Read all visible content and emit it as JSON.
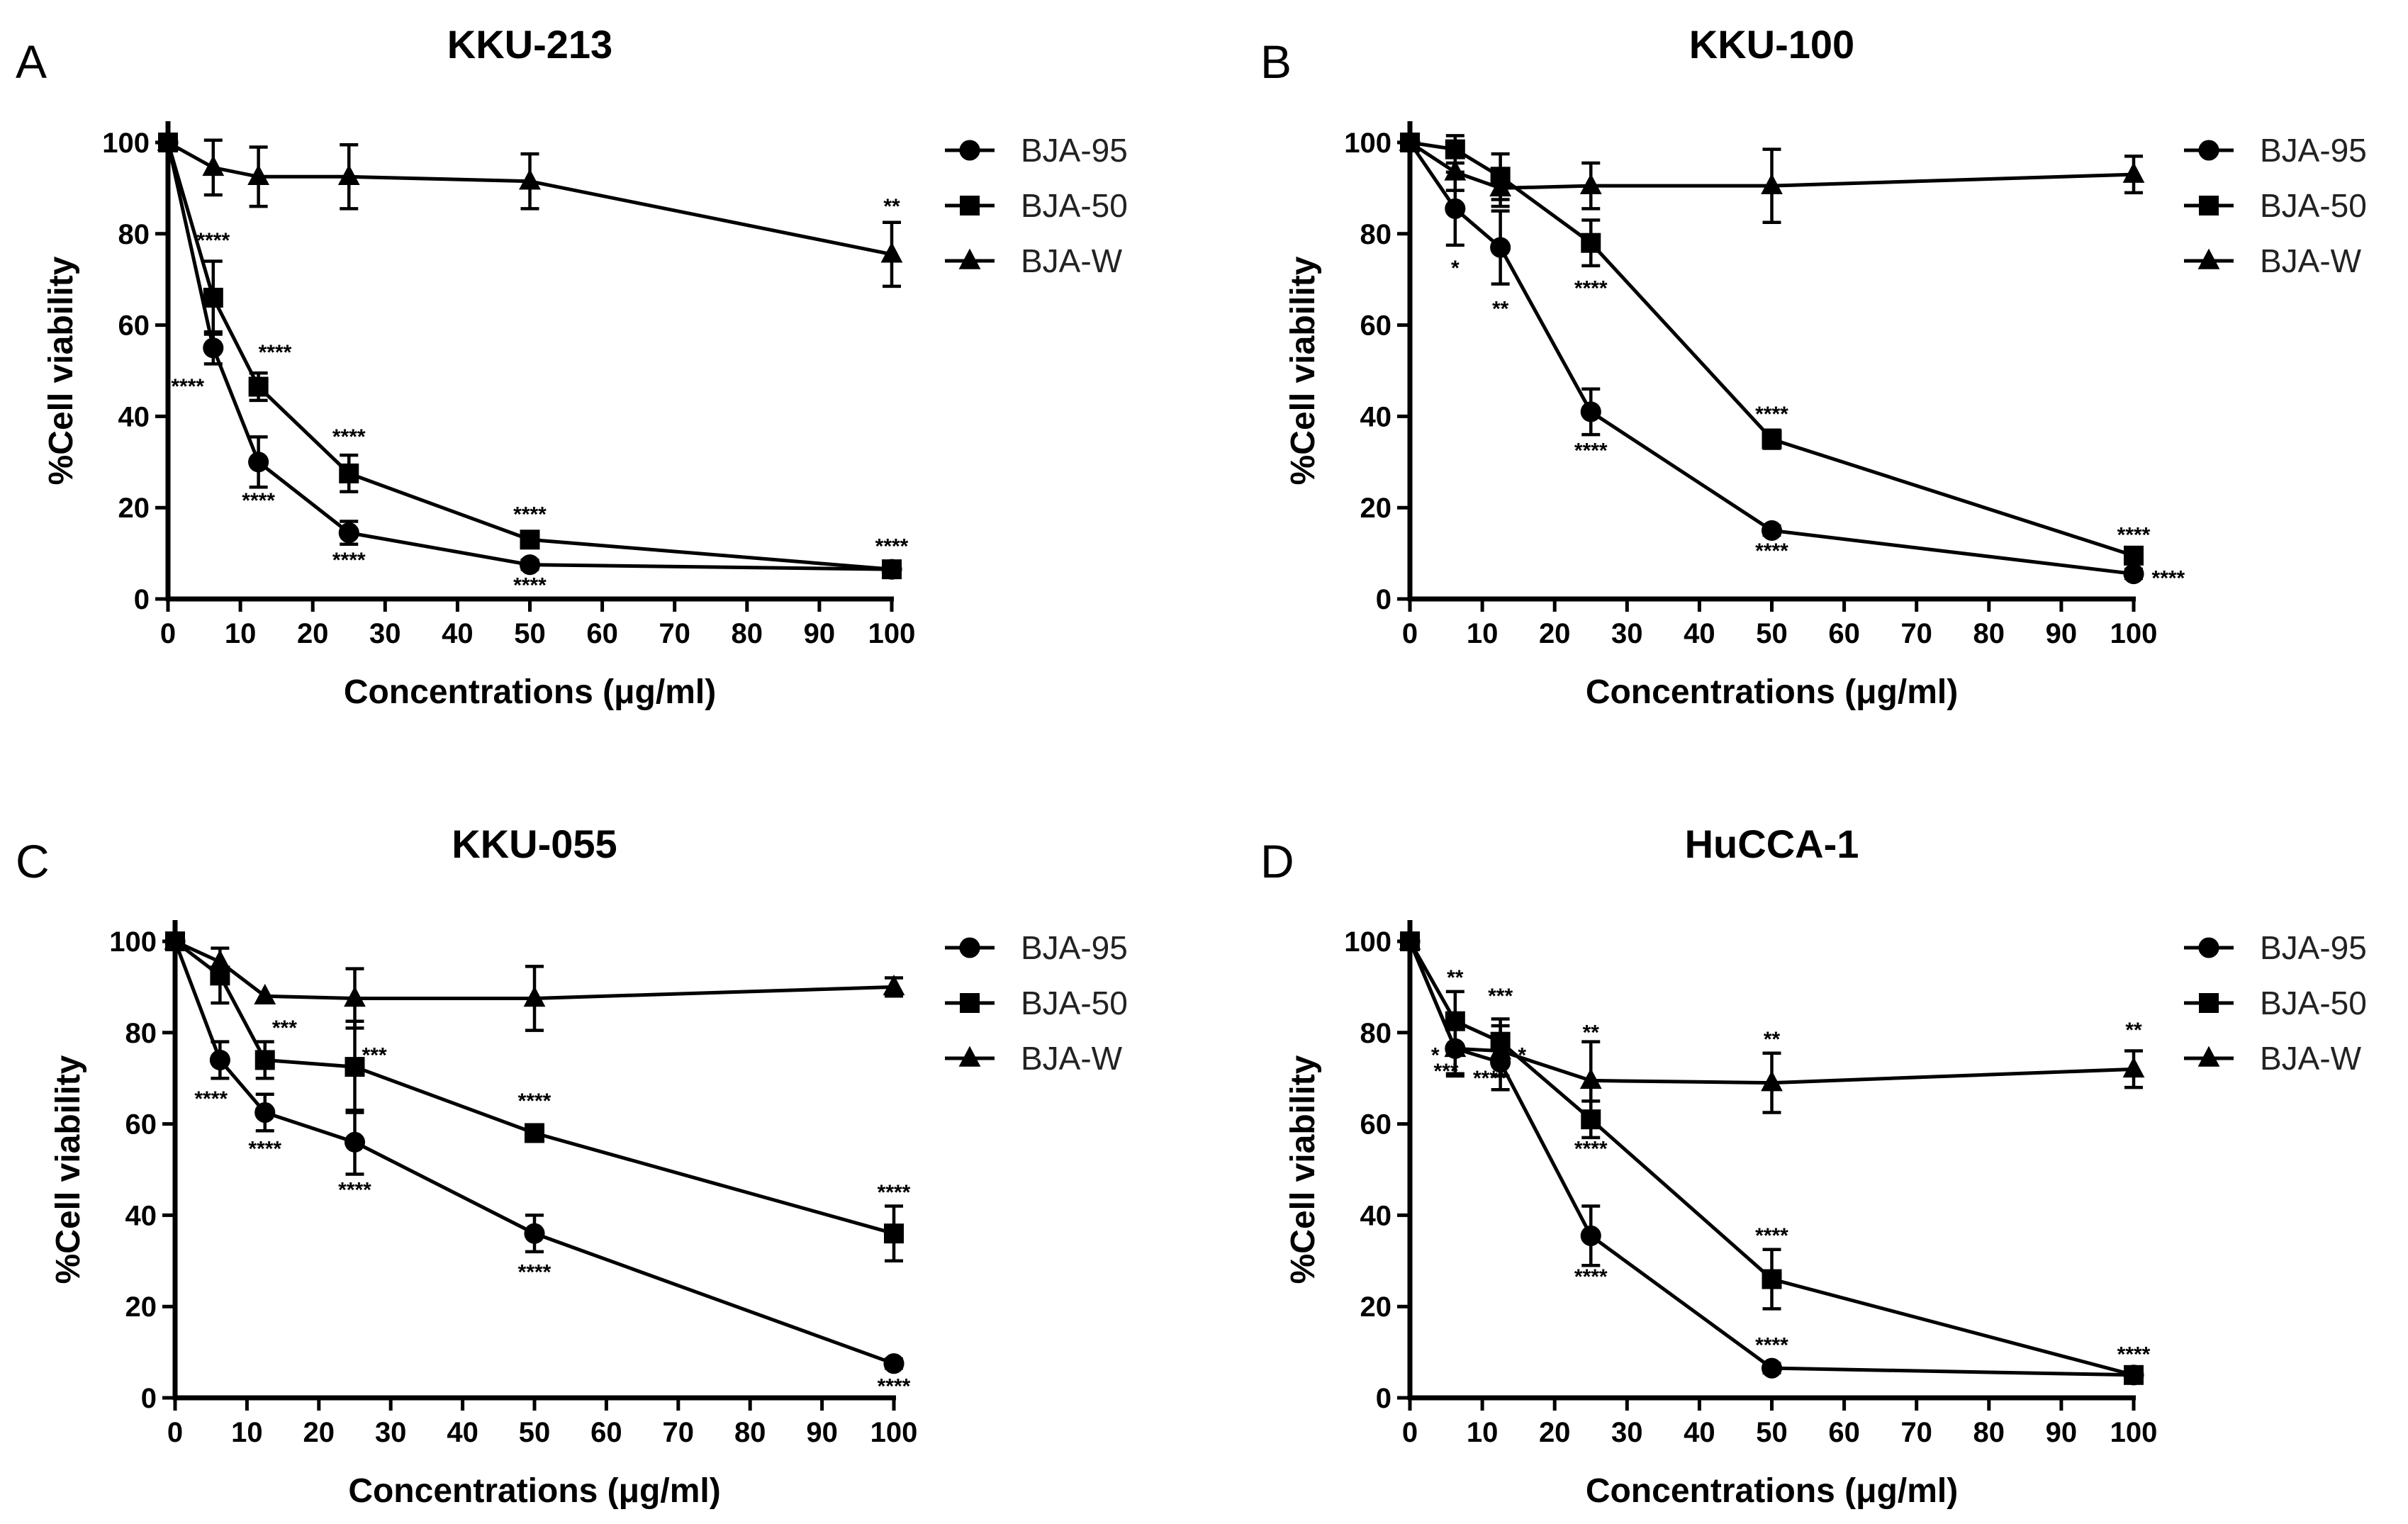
{
  "chart_data": [
    {
      "type": "line",
      "panel_label": "A",
      "title": "KKU-213",
      "xlabel": "Concentrations (μg/ml)",
      "ylabel": "%Cell viability",
      "xlim": [
        0,
        100
      ],
      "ylim": [
        0,
        100
      ],
      "xticks": [
        0,
        10,
        20,
        30,
        40,
        50,
        60,
        70,
        80,
        90,
        100
      ],
      "yticks": [
        0,
        20,
        40,
        60,
        80,
        100
      ],
      "x": [
        0,
        6.25,
        12.5,
        25,
        50,
        100
      ],
      "legend_position": "top-right",
      "series": [
        {
          "name": "BJA-95",
          "marker": "circle",
          "values": [
            100,
            55,
            30,
            14.5,
            7.5,
            6.5
          ],
          "errors": [
            0,
            3.5,
            5.5,
            2.5,
            1,
            1
          ]
        },
        {
          "name": "BJA-50",
          "marker": "square",
          "values": [
            100,
            66,
            46.5,
            27.5,
            13,
            6.5
          ],
          "errors": [
            0,
            8,
            3,
            4,
            1.5,
            1.5
          ]
        },
        {
          "name": "BJA-W",
          "marker": "triangle",
          "values": [
            100,
            94.5,
            92.5,
            92.5,
            91.5,
            75.5
          ],
          "errors": [
            0,
            6,
            6.5,
            7,
            6,
            7
          ]
        }
      ],
      "annotations": [
        {
          "text": "****",
          "x": 6.25,
          "y": 77,
          "anchor": "middle"
        },
        {
          "text": "****",
          "x": 5,
          "y": 45,
          "anchor": "end"
        },
        {
          "text": "****",
          "x": 12.5,
          "y": 52.5,
          "anchor": "start"
        },
        {
          "text": "****",
          "x": 12.5,
          "y": 20,
          "anchor": "middle"
        },
        {
          "text": "****",
          "x": 25,
          "y": 34,
          "anchor": "middle"
        },
        {
          "text": "****",
          "x": 25,
          "y": 7,
          "anchor": "middle"
        },
        {
          "text": "****",
          "x": 50,
          "y": 17,
          "anchor": "middle"
        },
        {
          "text": "****",
          "x": 50,
          "y": 1.5,
          "anchor": "middle"
        },
        {
          "text": "****",
          "x": 100,
          "y": 10,
          "anchor": "middle"
        },
        {
          "text": "**",
          "x": 100,
          "y": 84.5,
          "anchor": "middle"
        }
      ]
    },
    {
      "type": "line",
      "panel_label": "B",
      "title": "KKU-100",
      "xlabel": "Concentrations (μg/ml)",
      "ylabel": "%Cell viability",
      "xlim": [
        0,
        100
      ],
      "ylim": [
        0,
        100
      ],
      "xticks": [
        0,
        10,
        20,
        30,
        40,
        50,
        60,
        70,
        80,
        90,
        100
      ],
      "yticks": [
        0,
        20,
        40,
        60,
        80,
        100
      ],
      "x": [
        0,
        6.25,
        12.5,
        25,
        50,
        100
      ],
      "legend_position": "top-right",
      "series": [
        {
          "name": "BJA-95",
          "marker": "circle",
          "values": [
            100,
            85.5,
            77,
            41,
            15,
            5.5
          ],
          "errors": [
            0,
            8,
            8,
            5,
            1,
            1
          ]
        },
        {
          "name": "BJA-50",
          "marker": "square",
          "values": [
            100,
            98.5,
            92.5,
            78,
            35,
            9.5
          ],
          "errors": [
            0,
            3,
            5,
            5,
            2,
            1
          ]
        },
        {
          "name": "BJA-W",
          "marker": "triangle",
          "values": [
            100,
            93.5,
            90,
            90.5,
            90.5,
            93
          ],
          "errors": [
            0,
            4,
            4,
            5,
            8,
            4
          ]
        }
      ],
      "annotations": [
        {
          "text": "*",
          "x": 6.25,
          "y": 71,
          "anchor": "middle"
        },
        {
          "text": "**",
          "x": 12.5,
          "y": 62,
          "anchor": "middle"
        },
        {
          "text": "****",
          "x": 25,
          "y": 66.5,
          "anchor": "middle"
        },
        {
          "text": "****",
          "x": 25,
          "y": 31,
          "anchor": "middle"
        },
        {
          "text": "****",
          "x": 50,
          "y": 39,
          "anchor": "middle"
        },
        {
          "text": "****",
          "x": 50,
          "y": 9,
          "anchor": "middle"
        },
        {
          "text": "****",
          "x": 100,
          "y": 12.5,
          "anchor": "middle"
        },
        {
          "text": "****",
          "x": 102.5,
          "y": 3,
          "anchor": "start"
        }
      ]
    },
    {
      "type": "line",
      "panel_label": "C",
      "title": "KKU-055",
      "xlabel": "Concentrations (μg/ml)",
      "ylabel": "%Cell viability",
      "xlim": [
        0,
        100
      ],
      "ylim": [
        0,
        100
      ],
      "xticks": [
        0,
        10,
        20,
        30,
        40,
        50,
        60,
        70,
        80,
        90,
        100
      ],
      "yticks": [
        0,
        20,
        40,
        60,
        80,
        100
      ],
      "x": [
        0,
        6.25,
        12.5,
        25,
        50,
        100
      ],
      "legend_position": "top-right",
      "series": [
        {
          "name": "BJA-95",
          "marker": "circle",
          "values": [
            100,
            74,
            62.5,
            56,
            36,
            7.5
          ],
          "errors": [
            0,
            4,
            4,
            7,
            4,
            1
          ]
        },
        {
          "name": "BJA-50",
          "marker": "square",
          "values": [
            100,
            92.5,
            74,
            72.5,
            58,
            36
          ],
          "errors": [
            0,
            6,
            4,
            10,
            1.5,
            6
          ]
        },
        {
          "name": "BJA-W",
          "marker": "triangle",
          "values": [
            100,
            95.5,
            88,
            87.5,
            87.5,
            90
          ],
          "errors": [
            0,
            0,
            0,
            6.5,
            7,
            2
          ]
        }
      ],
      "annotations": [
        {
          "text": "****",
          "x": 5,
          "y": 64,
          "anchor": "middle"
        },
        {
          "text": "***",
          "x": 13.5,
          "y": 79.5,
          "anchor": "start"
        },
        {
          "text": "****",
          "x": 12.5,
          "y": 53,
          "anchor": "middle"
        },
        {
          "text": "***",
          "x": 26,
          "y": 73.5,
          "anchor": "start"
        },
        {
          "text": "****",
          "x": 25,
          "y": 44,
          "anchor": "middle"
        },
        {
          "text": "****",
          "x": 50,
          "y": 63.5,
          "anchor": "middle"
        },
        {
          "text": "****",
          "x": 50,
          "y": 26,
          "anchor": "middle"
        },
        {
          "text": "****",
          "x": 100,
          "y": 43.5,
          "anchor": "middle"
        },
        {
          "text": "****",
          "x": 100,
          "y": 1,
          "anchor": "middle"
        }
      ]
    },
    {
      "type": "line",
      "panel_label": "D",
      "title": "HuCCA-1",
      "xlabel": "Concentrations (μg/ml)",
      "ylabel": "%Cell viability",
      "xlim": [
        0,
        100
      ],
      "ylim": [
        0,
        100
      ],
      "xticks": [
        0,
        10,
        20,
        30,
        40,
        50,
        60,
        70,
        80,
        90,
        100
      ],
      "yticks": [
        0,
        20,
        40,
        60,
        80,
        100
      ],
      "x": [
        0,
        6.25,
        12.5,
        25,
        50,
        100
      ],
      "legend_position": "top-right",
      "series": [
        {
          "name": "BJA-95",
          "marker": "circle",
          "values": [
            100,
            76.5,
            73.5,
            35.5,
            6.5,
            5
          ],
          "errors": [
            0,
            6,
            6,
            6.5,
            1,
            1
          ]
        },
        {
          "name": "BJA-50",
          "marker": "square",
          "values": [
            100,
            82.5,
            78,
            61,
            26,
            5
          ],
          "errors": [
            0,
            6.5,
            5,
            4,
            6.5,
            1
          ]
        },
        {
          "name": "BJA-W",
          "marker": "triangle",
          "values": [
            100,
            76.5,
            76,
            69.5,
            69,
            72
          ],
          "errors": [
            0,
            5.5,
            5.5,
            8.5,
            6.5,
            4
          ]
        }
      ],
      "annotations": [
        {
          "text": "**",
          "x": 6.25,
          "y": 90.5,
          "anchor": "middle"
        },
        {
          "text": "*",
          "x": 3.5,
          "y": 73.5,
          "anchor": "middle"
        },
        {
          "text": "***",
          "x": 5,
          "y": 70,
          "anchor": "middle"
        },
        {
          "text": "***",
          "x": 12.5,
          "y": 86.5,
          "anchor": "middle"
        },
        {
          "text": "*",
          "x": 15.5,
          "y": 73.5,
          "anchor": "middle"
        },
        {
          "text": "****",
          "x": 11,
          "y": 68.5,
          "anchor": "middle"
        },
        {
          "text": "**",
          "x": 25,
          "y": 78.5,
          "anchor": "middle"
        },
        {
          "text": "****",
          "x": 25,
          "y": 53,
          "anchor": "middle"
        },
        {
          "text": "****",
          "x": 25,
          "y": 25,
          "anchor": "middle"
        },
        {
          "text": "**",
          "x": 50,
          "y": 77,
          "anchor": "middle"
        },
        {
          "text": "****",
          "x": 50,
          "y": 34,
          "anchor": "middle"
        },
        {
          "text": "****",
          "x": 50,
          "y": 10,
          "anchor": "middle"
        },
        {
          "text": "**",
          "x": 100,
          "y": 79,
          "anchor": "middle"
        },
        {
          "text": "****",
          "x": 100,
          "y": 8,
          "anchor": "middle"
        }
      ]
    }
  ]
}
